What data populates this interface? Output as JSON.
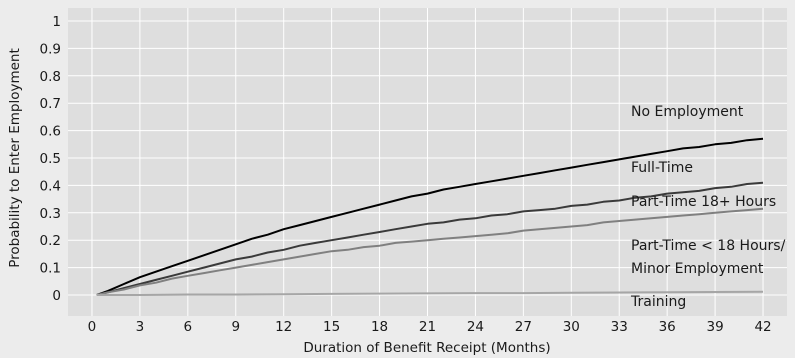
{
  "chart_data": {
    "type": "line",
    "title": "",
    "xlabel": "Duration of Benefit Receipt (Months)",
    "ylabel": "Probability to Enter Employment",
    "xlim": [
      -1.5,
      43.5
    ],
    "ylim": [
      0,
      1
    ],
    "xticks": [
      0,
      3,
      6,
      9,
      12,
      15,
      18,
      21,
      24,
      27,
      30,
      33,
      36,
      39,
      42
    ],
    "yticks": [
      0,
      0.1,
      0.2,
      0.3,
      0.4,
      0.5,
      0.6,
      0.7,
      0.8,
      0.9,
      1
    ],
    "ytick_labels": [
      "0",
      "0.1",
      "0.2",
      "0.3",
      "0.4",
      "0.5",
      "0.6",
      "0.7",
      "0.8",
      "0.9",
      "1"
    ],
    "grid": true,
    "legend": "direct labels on right",
    "series": [
      {
        "name": "No Employment",
        "color": "#000000",
        "x": [
          0.3,
          1,
          2,
          3,
          4,
          5,
          6,
          7,
          8,
          9,
          10,
          11,
          12,
          13,
          14,
          15,
          16,
          17,
          18,
          19,
          20,
          21,
          22,
          23,
          24,
          25,
          26,
          27,
          28,
          29,
          30,
          31,
          32,
          33,
          34,
          35,
          36,
          37,
          38,
          39,
          40,
          41,
          42
        ],
        "values": [
          0.0,
          0.015,
          0.04,
          0.065,
          0.085,
          0.105,
          0.125,
          0.145,
          0.165,
          0.185,
          0.205,
          0.22,
          0.24,
          0.255,
          0.27,
          0.285,
          0.3,
          0.315,
          0.33,
          0.345,
          0.36,
          0.37,
          0.385,
          0.395,
          0.405,
          0.415,
          0.425,
          0.435,
          0.445,
          0.455,
          0.465,
          0.475,
          0.485,
          0.495,
          0.505,
          0.515,
          0.525,
          0.535,
          0.54,
          0.55,
          0.555,
          0.565,
          0.57
        ]
      },
      {
        "name": "Full-Time",
        "color": "#3a3a3a",
        "x": [
          0.3,
          1,
          2,
          3,
          4,
          5,
          6,
          7,
          8,
          9,
          10,
          11,
          12,
          13,
          14,
          15,
          16,
          17,
          18,
          19,
          20,
          21,
          22,
          23,
          24,
          25,
          26,
          27,
          28,
          29,
          30,
          31,
          32,
          33,
          34,
          35,
          36,
          37,
          38,
          39,
          40,
          41,
          42
        ],
        "values": [
          0.0,
          0.01,
          0.025,
          0.04,
          0.055,
          0.07,
          0.085,
          0.1,
          0.115,
          0.13,
          0.14,
          0.155,
          0.165,
          0.18,
          0.19,
          0.2,
          0.21,
          0.22,
          0.23,
          0.24,
          0.25,
          0.26,
          0.265,
          0.275,
          0.28,
          0.29,
          0.295,
          0.305,
          0.31,
          0.315,
          0.325,
          0.33,
          0.34,
          0.345,
          0.355,
          0.36,
          0.37,
          0.375,
          0.38,
          0.39,
          0.395,
          0.405,
          0.41
        ]
      },
      {
        "name": "Part-Time 18+ Hours",
        "color": "#808080",
        "x": [
          0.3,
          1,
          2,
          3,
          4,
          5,
          6,
          7,
          8,
          9,
          10,
          11,
          12,
          13,
          14,
          15,
          16,
          17,
          18,
          19,
          20,
          21,
          22,
          23,
          24,
          25,
          26,
          27,
          28,
          29,
          30,
          31,
          32,
          33,
          34,
          35,
          36,
          37,
          38,
          39,
          40,
          41,
          42
        ],
        "values": [
          0.0,
          0.01,
          0.02,
          0.035,
          0.045,
          0.06,
          0.07,
          0.08,
          0.09,
          0.1,
          0.11,
          0.12,
          0.13,
          0.14,
          0.15,
          0.16,
          0.165,
          0.175,
          0.18,
          0.19,
          0.195,
          0.2,
          0.205,
          0.21,
          0.215,
          0.22,
          0.225,
          0.235,
          0.24,
          0.245,
          0.25,
          0.255,
          0.265,
          0.27,
          0.275,
          0.28,
          0.285,
          0.29,
          0.295,
          0.3,
          0.305,
          0.31,
          0.315
        ]
      },
      {
        "name": "Training",
        "color": "#a6a6a6",
        "x": [
          0.3,
          3,
          6,
          9,
          12,
          15,
          18,
          21,
          24,
          27,
          30,
          33,
          36,
          39,
          42
        ],
        "values": [
          0.0,
          0.0,
          0.002,
          0.002,
          0.003,
          0.004,
          0.005,
          0.006,
          0.007,
          0.007,
          0.008,
          0.009,
          0.01,
          0.011,
          0.012
        ]
      }
    ],
    "annotations": [
      {
        "text": "No Employment"
      },
      {
        "text": "Full-Time"
      },
      {
        "text": "Part-Time 18+ Hours"
      },
      {
        "text": "Part-Time < 18 Hours/"
      },
      {
        "text": "Minor Employment"
      },
      {
        "text": "Training"
      }
    ]
  }
}
